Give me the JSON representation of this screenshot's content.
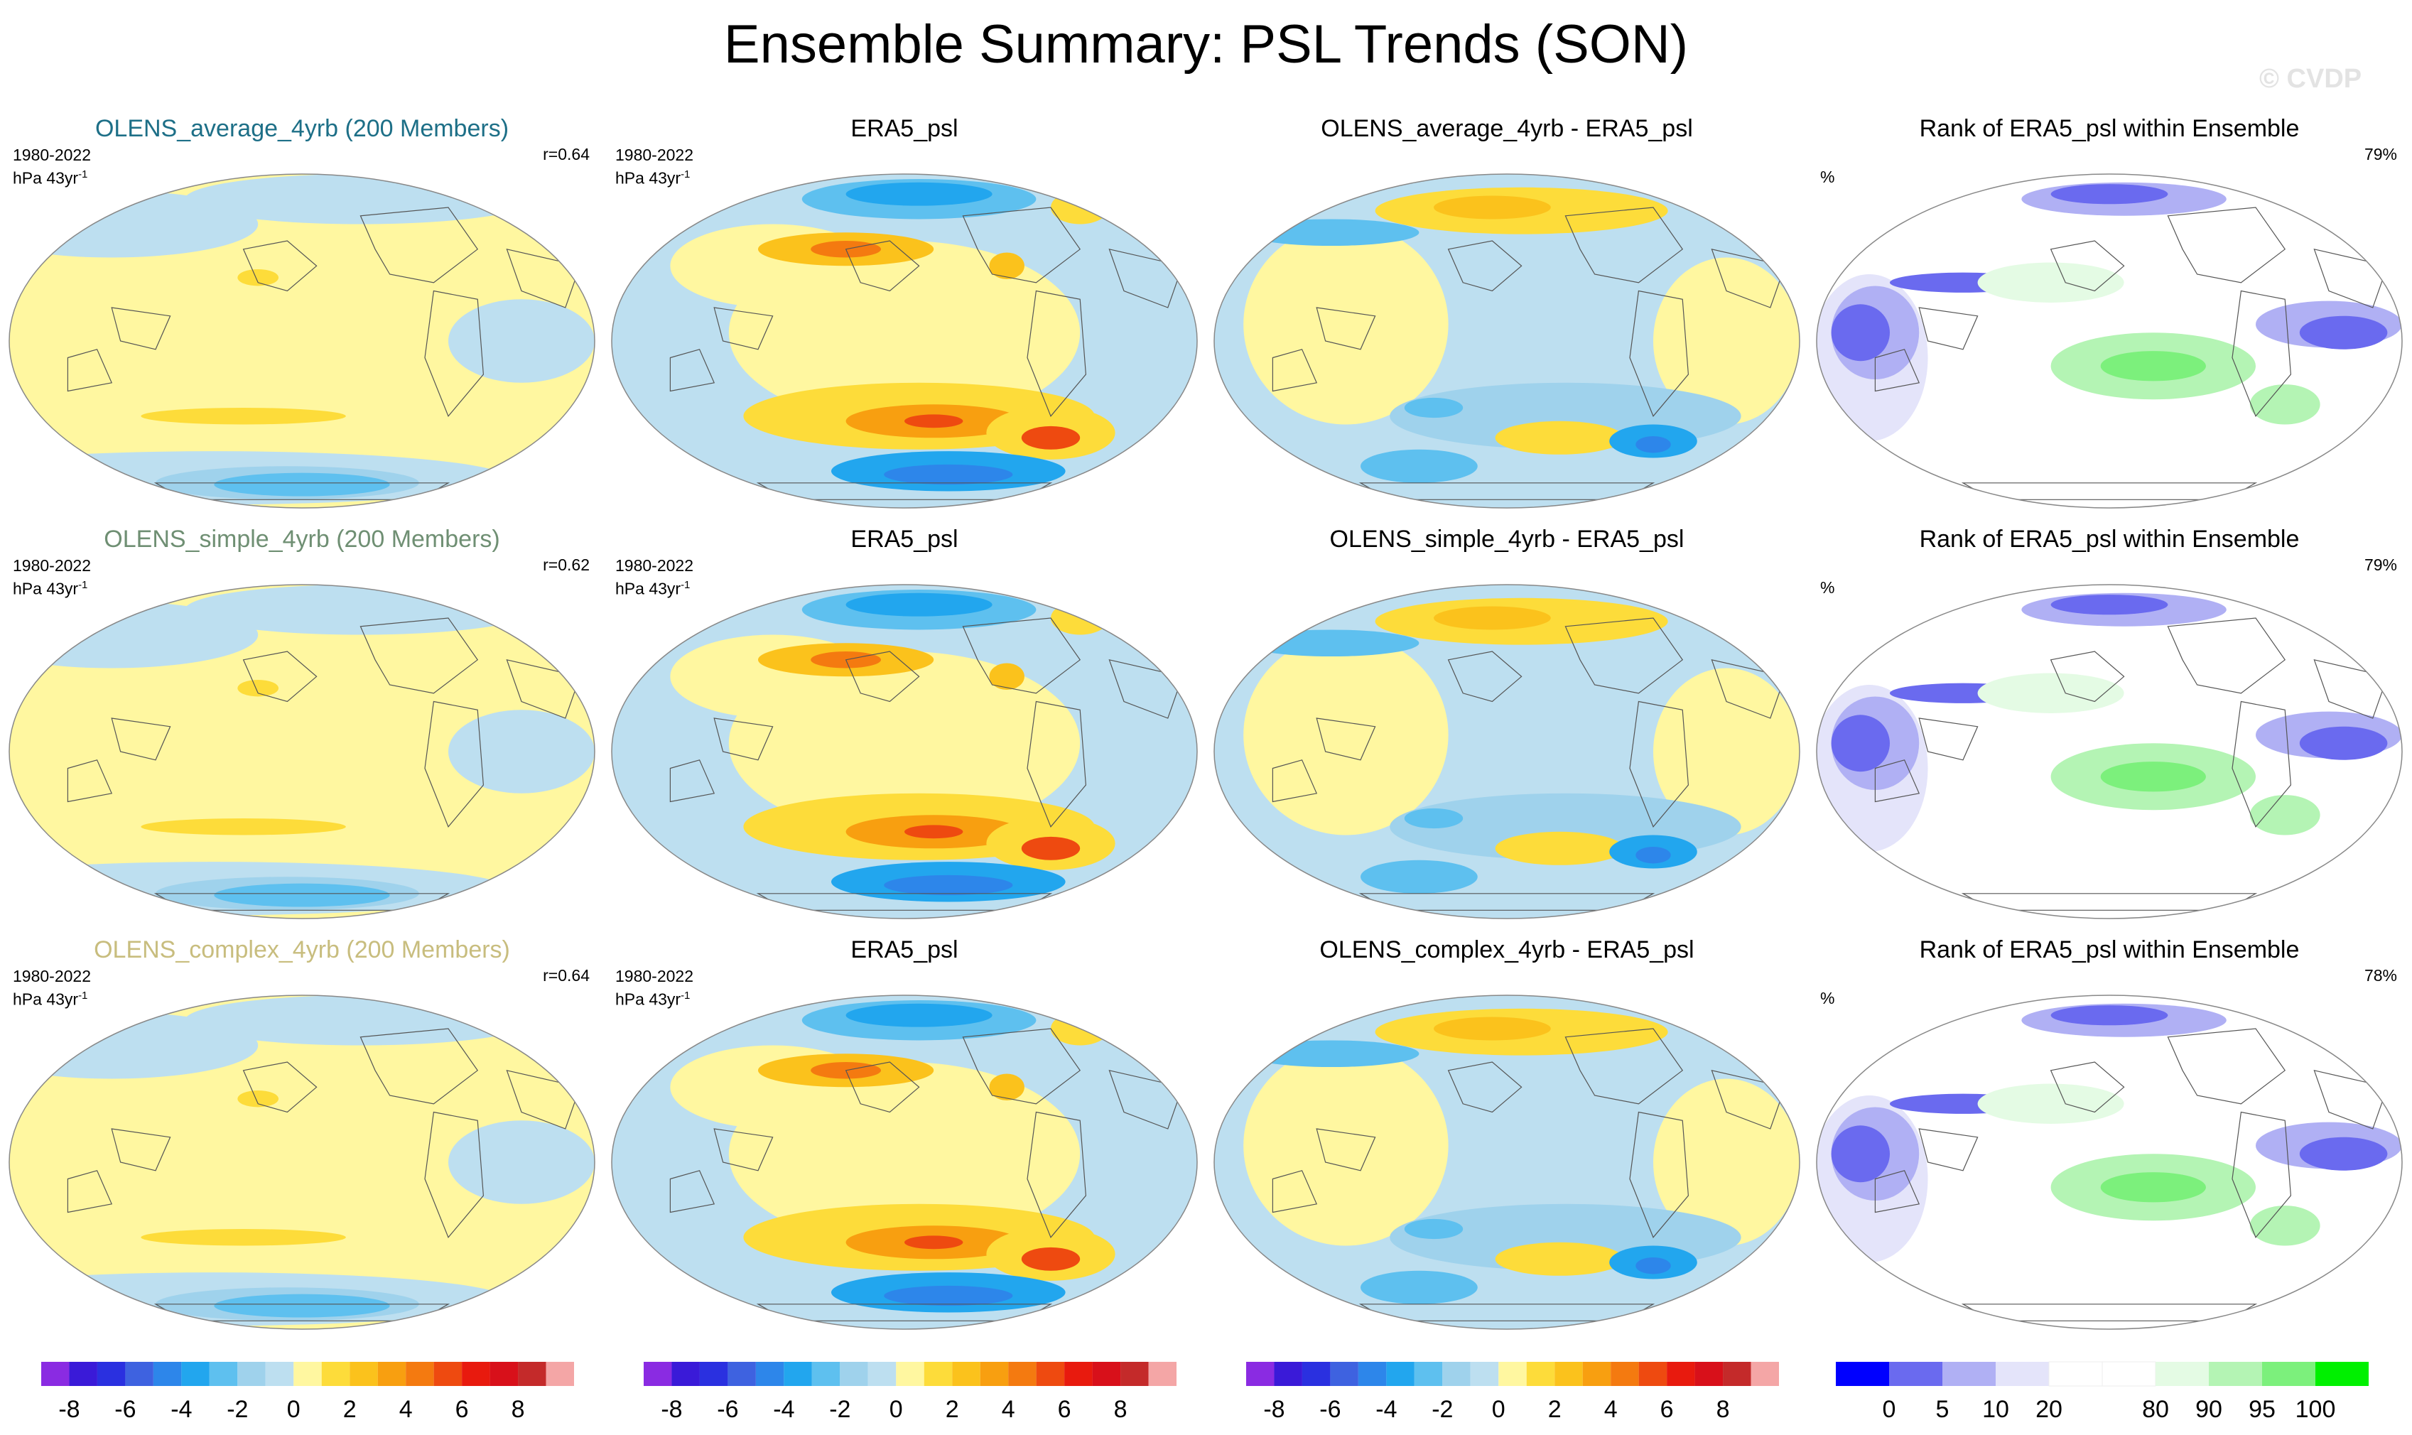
{
  "title": "Ensemble Summary: PSL Trends (SON)",
  "watermark": "© CVDP",
  "chart_data": {
    "type": "heatmap",
    "description_rows": [
      "OLENS_average_4yrb",
      "OLENS_simple_4yrb",
      "OLENS_complex_4yrb"
    ],
    "panels": [
      {
        "title": "OLENS_average_4yrb (200 Members)",
        "title_color": "#1d6f87",
        "period": "1980-2022",
        "units": "hPa 43yr",
        "units_sup": "-1",
        "corr": "r=0.64",
        "kind": "model"
      },
      {
        "title": "ERA5_psl",
        "title_color": "#000000",
        "period": "1980-2022",
        "units": "hPa 43yr",
        "units_sup": "-1",
        "kind": "obs"
      },
      {
        "title": "OLENS_average_4yrb - ERA5_psl",
        "title_color": "#000000",
        "kind": "diff"
      },
      {
        "title": "Rank of ERA5_psl within Ensemble",
        "title_color": "#000000",
        "pct_symbol": "%",
        "rank_pct": "79%",
        "kind": "rank"
      },
      {
        "title": "OLENS_simple_4yrb (200 Members)",
        "title_color": "#6f8f73",
        "period": "1980-2022",
        "units": "hPa 43yr",
        "units_sup": "-1",
        "corr": "r=0.62",
        "kind": "model"
      },
      {
        "title": "ERA5_psl",
        "title_color": "#000000",
        "period": "1980-2022",
        "units": "hPa 43yr",
        "units_sup": "-1",
        "kind": "obs"
      },
      {
        "title": "OLENS_simple_4yrb - ERA5_psl",
        "title_color": "#000000",
        "kind": "diff"
      },
      {
        "title": "Rank of ERA5_psl within Ensemble",
        "title_color": "#000000",
        "pct_symbol": "%",
        "rank_pct": "79%",
        "kind": "rank"
      },
      {
        "title": "OLENS_complex_4yrb (200 Members)",
        "title_color": "#c8bd7e",
        "period": "1980-2022",
        "units": "hPa 43yr",
        "units_sup": "-1",
        "corr": "r=0.64",
        "kind": "model"
      },
      {
        "title": "ERA5_psl",
        "title_color": "#000000",
        "period": "1980-2022",
        "units": "hPa 43yr",
        "units_sup": "-1",
        "kind": "obs"
      },
      {
        "title": "OLENS_complex_4yrb - ERA5_psl",
        "title_color": "#000000",
        "kind": "diff"
      },
      {
        "title": "Rank of ERA5_psl within Ensemble",
        "title_color": "#000000",
        "pct_symbol": "%",
        "rank_pct": "78%",
        "kind": "rank"
      }
    ],
    "colorbar_trend": {
      "colors": [
        "#8a2be2",
        "#3a1ad8",
        "#2a30e0",
        "#3e62e0",
        "#2d86ea",
        "#22a6ee",
        "#5ec0ef",
        "#9fd2ec",
        "#bddff0",
        "#fff7a0",
        "#fddc3a",
        "#fbc21c",
        "#f89f10",
        "#f47a10",
        "#ee4a10",
        "#e81a0e",
        "#d8101a",
        "#c42a2a",
        "#f4a6a6"
      ],
      "tick_labels": [
        "-8",
        "-6",
        "-4",
        "-2",
        "0",
        "2",
        "4",
        "6",
        "8"
      ]
    },
    "colorbar_rank": {
      "colors": [
        "#0000ff",
        "#6a6aef",
        "#b0b0f4",
        "#e4e4fa",
        "#ffffff",
        "#ffffff",
        "#e4fbe4",
        "#b4f4b4",
        "#7cf07c",
        "#00f000"
      ],
      "tick_labels": [
        "0",
        "5",
        "10",
        "20",
        "80",
        "90",
        "95",
        "100"
      ]
    }
  }
}
